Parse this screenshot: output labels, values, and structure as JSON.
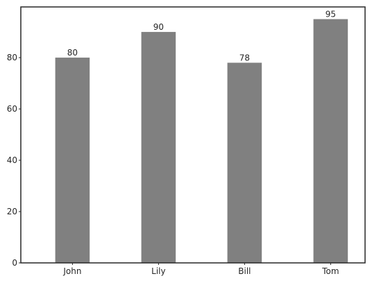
{
  "chart_data": {
    "type": "bar",
    "categories": [
      "John",
      "Lily",
      "Bill",
      "Tom"
    ],
    "values": [
      80,
      90,
      78,
      95
    ],
    "data_labels": [
      "80",
      "90",
      "78",
      "95"
    ],
    "y_ticks": [
      0,
      20,
      40,
      60,
      80
    ],
    "y_tick_labels": [
      "0",
      "20",
      "40",
      "60",
      "80"
    ],
    "ylim": [
      0,
      99.75
    ],
    "title": "",
    "xlabel": "",
    "ylabel": "",
    "grid": false,
    "legend": "none",
    "bar_color": "#808080",
    "frame_color": "#262626"
  }
}
